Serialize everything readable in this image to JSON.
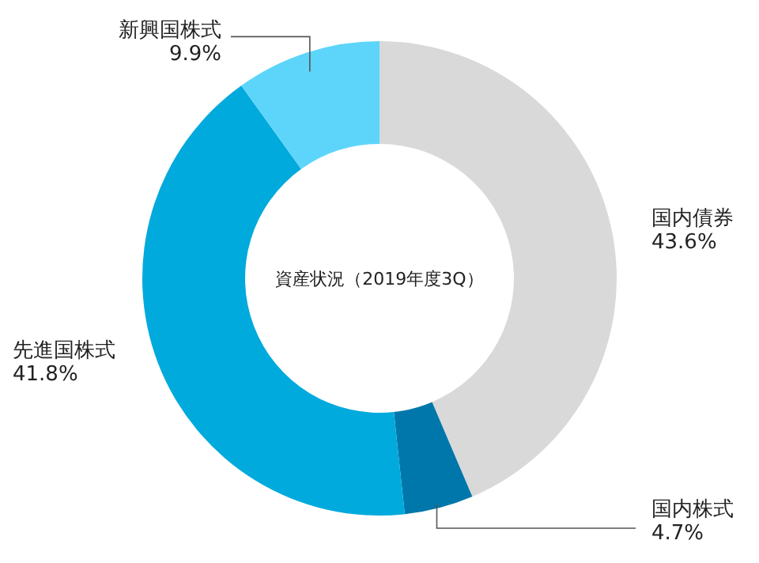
{
  "chart_data": {
    "type": "donut",
    "title": "資産状況（2019年度3Q）",
    "categories": [
      "国内債券",
      "国内株式",
      "先進国株式",
      "新興国株式"
    ],
    "values": [
      43.6,
      4.7,
      41.8,
      9.9
    ],
    "colors": [
      "#d9d9d9",
      "#0077aa",
      "#00aadc",
      "#5dd5fb"
    ],
    "value_labels": [
      "43.6%",
      "4.7%",
      "41.8%",
      "9.9%"
    ]
  }
}
